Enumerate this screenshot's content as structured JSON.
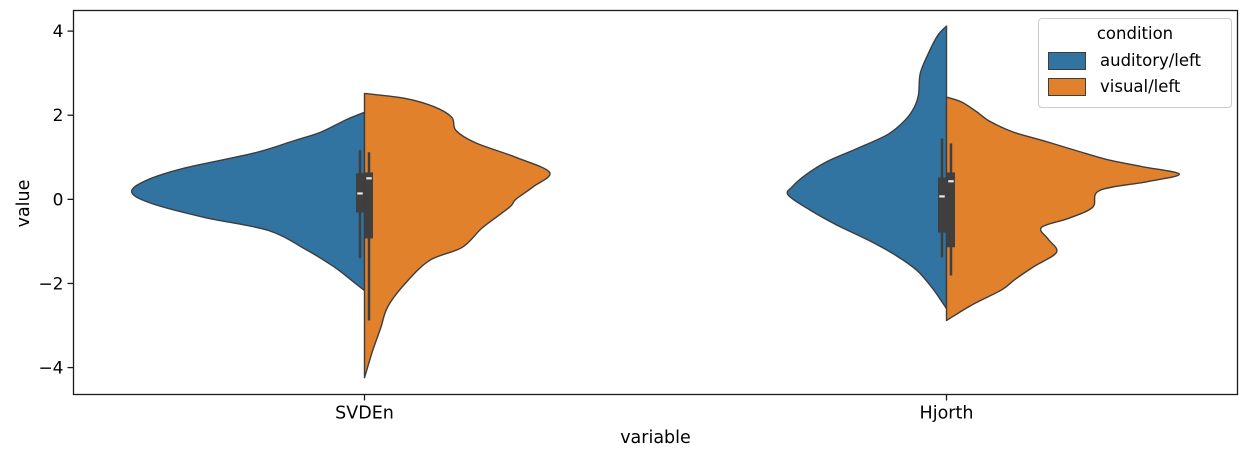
{
  "chart_data": {
    "type": "violin",
    "variant": "split-violin",
    "title": "",
    "xlabel": "variable",
    "ylabel": "value",
    "categories": [
      "SVDEn",
      "Hjorth"
    ],
    "y_ticks": [
      {
        "value": 4,
        "label": "4"
      },
      {
        "value": 2,
        "label": "2"
      },
      {
        "value": 0,
        "label": "0"
      },
      {
        "value": -2,
        "label": "−2"
      },
      {
        "value": -4,
        "label": "−4"
      }
    ],
    "xlim": [
      -0.5,
      1.5
    ],
    "ylim": [
      -4.64,
      4.49
    ],
    "grid": false,
    "colors": {
      "edge": "#3d3d3d",
      "inner_box": "#3f3f3f",
      "median": "#e8e8e8",
      "spine": "#1a1a1a",
      "text": "#000000"
    },
    "legend": {
      "title": "condition",
      "position": "upper right",
      "entries": [
        {
          "label": "auditory/left",
          "color": "#3274a1"
        },
        {
          "label": "visual/left",
          "color": "#e1812c"
        }
      ]
    },
    "series": [
      {
        "name": "auditory/left",
        "side": "left",
        "color": "#3274a1",
        "violins": [
          {
            "category": "SVDEn",
            "profile": [
              [
                2.07,
                0
              ],
              [
                1.9,
                0.03
              ],
              [
                1.6,
                0.075
              ],
              [
                1.4,
                0.12
              ],
              [
                1.1,
                0.19
              ],
              [
                0.74,
                0.31
              ],
              [
                0.45,
                0.375
              ],
              [
                0.17,
                0.4
              ],
              [
                -0.1,
                0.365
              ],
              [
                -0.43,
                0.275
              ],
              [
                -0.74,
                0.165
              ],
              [
                -1.2,
                0.1
              ],
              [
                -1.6,
                0.053
              ],
              [
                -1.95,
                0.02
              ],
              [
                -2.17,
                0
              ]
            ],
            "box": {
              "whisker_low": -1.4,
              "q1": -0.31,
              "median": 0.14,
              "q3": 0.62,
              "whisker_high": 1.17
            }
          },
          {
            "category": "Hjorth",
            "profile": [
              [
                4.12,
                0
              ],
              [
                3.9,
                0.015
              ],
              [
                3.5,
                0.03
              ],
              [
                3.0,
                0.045
              ],
              [
                2.5,
                0.048
              ],
              [
                2.2,
                0.055
              ],
              [
                1.9,
                0.07
              ],
              [
                1.55,
                0.1
              ],
              [
                1.2,
                0.155
              ],
              [
                0.9,
                0.205
              ],
              [
                0.6,
                0.24
              ],
              [
                0.3,
                0.265
              ],
              [
                0.1,
                0.272
              ],
              [
                -0.25,
                0.235
              ],
              [
                -0.6,
                0.19
              ],
              [
                -1.0,
                0.13
              ],
              [
                -1.35,
                0.085
              ],
              [
                -1.7,
                0.05
              ],
              [
                -2.1,
                0.025
              ],
              [
                -2.35,
                0.012
              ],
              [
                -2.6,
                0
              ]
            ],
            "box": {
              "whisker_low": -1.38,
              "q1": -0.79,
              "median": 0.07,
              "q3": 0.52,
              "whisker_high": 1.45
            }
          }
        ]
      },
      {
        "name": "visual/left",
        "side": "right",
        "color": "#e1812c",
        "violins": [
          {
            "category": "SVDEn",
            "profile": [
              [
                2.52,
                0
              ],
              [
                2.4,
                0.07
              ],
              [
                2.2,
                0.12
              ],
              [
                1.95,
                0.15
              ],
              [
                1.64,
                0.157
              ],
              [
                1.35,
                0.19
              ],
              [
                1.0,
                0.26
              ],
              [
                0.64,
                0.318
              ],
              [
                0.3,
                0.29
              ],
              [
                0.0,
                0.26
              ],
              [
                -0.19,
                0.249
              ],
              [
                -0.67,
                0.203
              ],
              [
                -1.14,
                0.168
              ],
              [
                -1.45,
                0.112
              ],
              [
                -2.0,
                0.07
              ],
              [
                -2.55,
                0.04
              ],
              [
                -3.05,
                0.028
              ],
              [
                -3.6,
                0.014
              ],
              [
                -4.24,
                0
              ]
            ],
            "box": {
              "whisker_low": -2.88,
              "q1": -0.93,
              "median": 0.5,
              "q3": 0.64,
              "whisker_high": 1.12
            }
          },
          {
            "category": "Hjorth",
            "profile": [
              [
                2.43,
                0
              ],
              [
                2.32,
                0.025
              ],
              [
                2.1,
                0.05
              ],
              [
                1.85,
                0.075
              ],
              [
                1.6,
                0.115
              ],
              [
                1.38,
                0.17
              ],
              [
                1.15,
                0.225
              ],
              [
                0.95,
                0.275
              ],
              [
                0.78,
                0.335
              ],
              [
                0.6,
                0.4
              ],
              [
                0.42,
                0.345
              ],
              [
                0.21,
                0.263
              ],
              [
                -0.19,
                0.251
              ],
              [
                -0.45,
                0.21
              ],
              [
                -0.67,
                0.163
              ],
              [
                -0.95,
                0.175
              ],
              [
                -1.26,
                0.189
              ],
              [
                -1.6,
                0.15
              ],
              [
                -1.9,
                0.118
              ],
              [
                -2.15,
                0.095
              ],
              [
                -2.5,
                0.045
              ],
              [
                -2.88,
                0
              ]
            ],
            "box": {
              "whisker_low": -1.81,
              "q1": -1.14,
              "median": 0.43,
              "q3": 0.64,
              "whisker_high": 1.33
            }
          }
        ]
      }
    ]
  }
}
